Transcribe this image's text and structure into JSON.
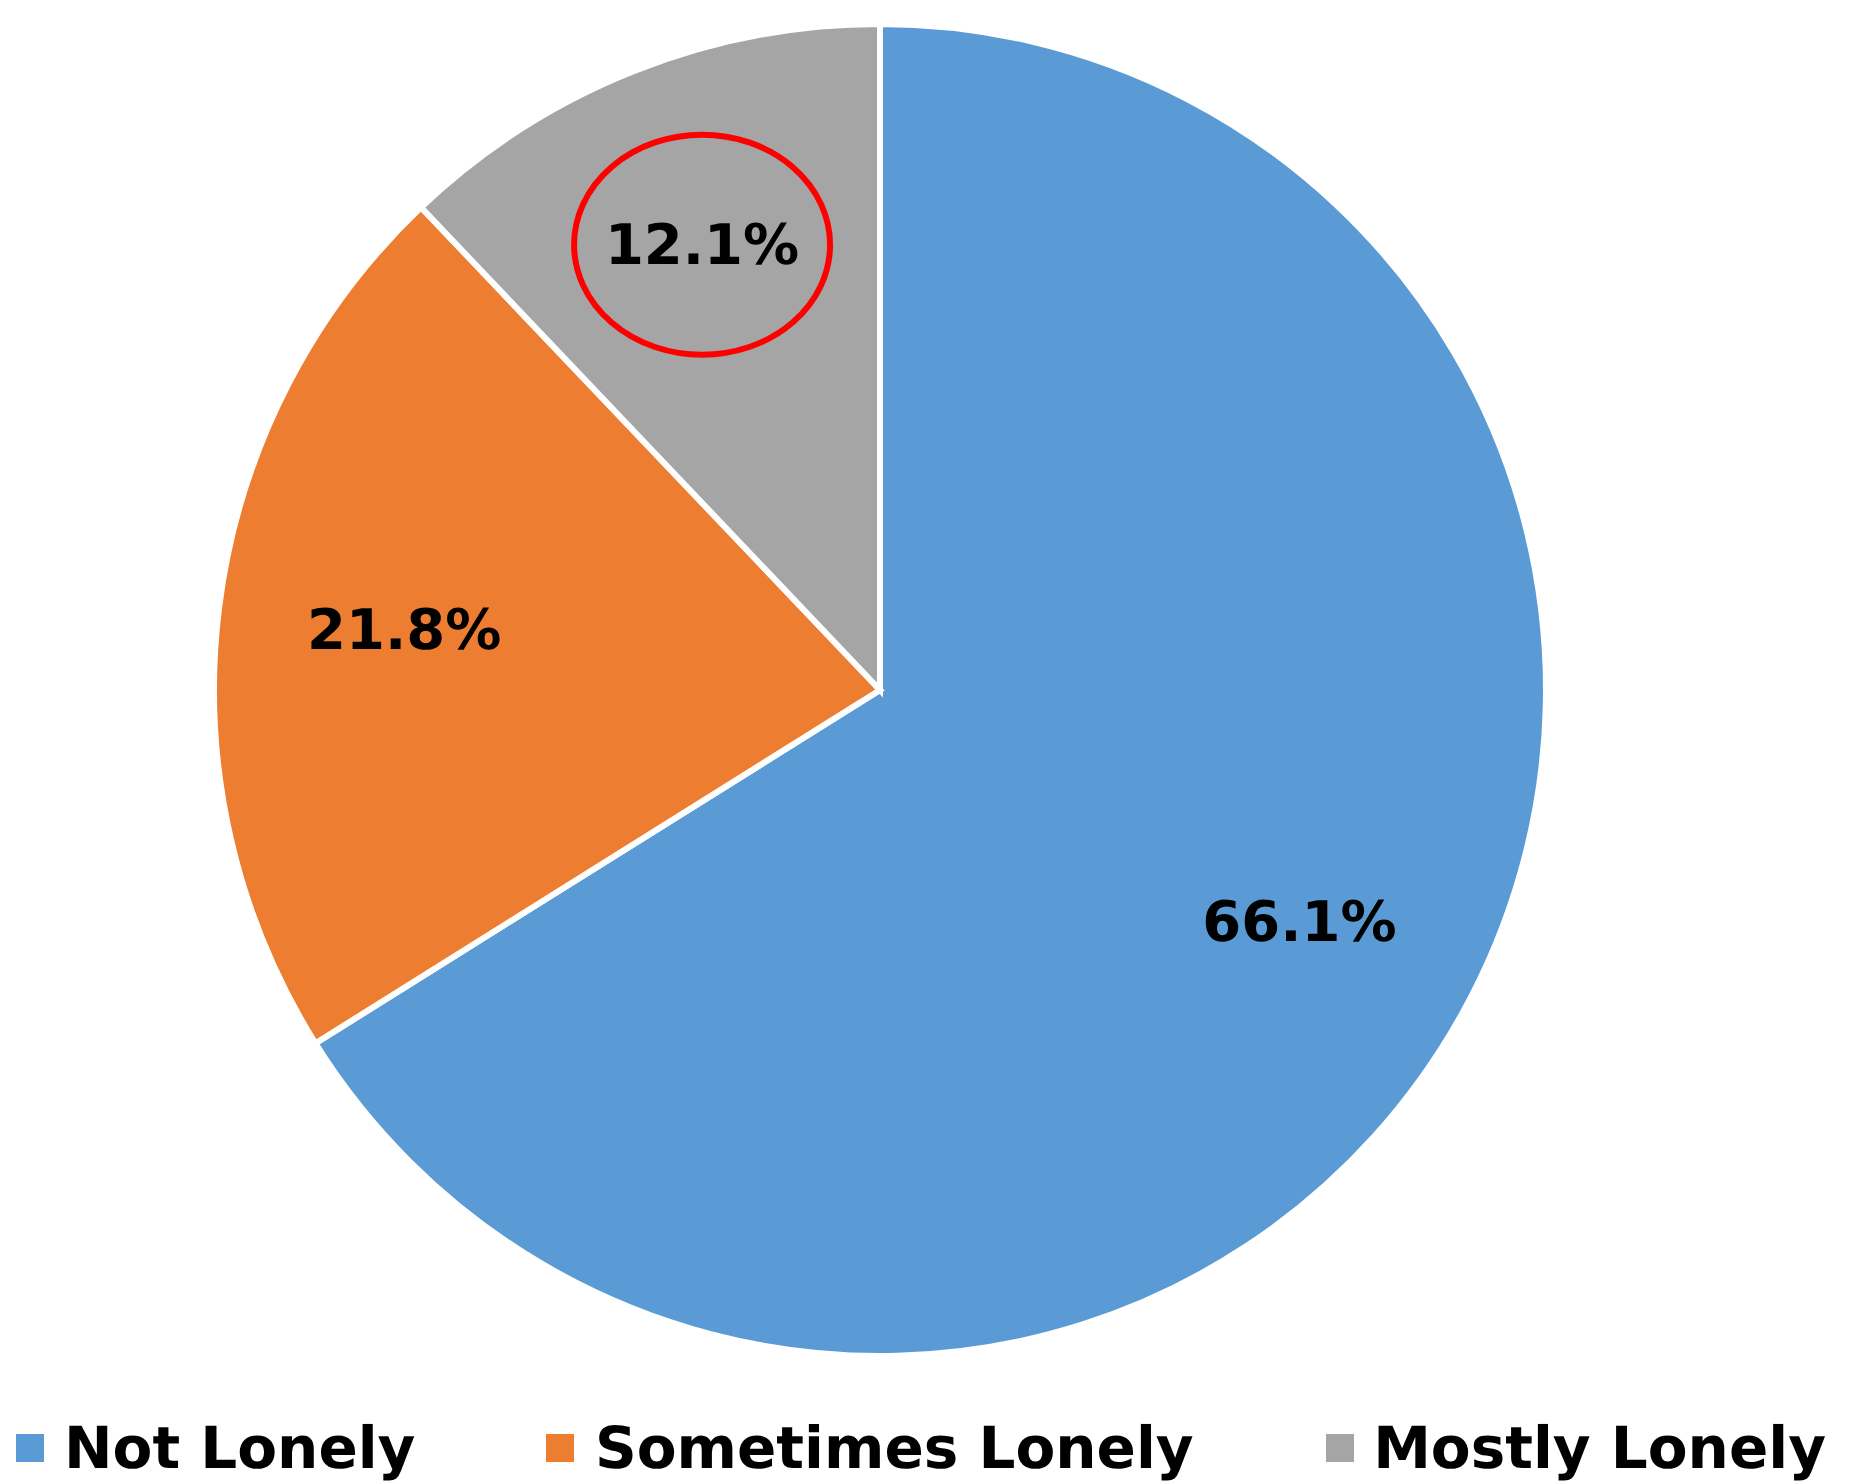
{
  "chart_data": {
    "type": "pie",
    "categories": [
      "Not Lonely",
      "Sometimes Lonely",
      "Mostly Lonely"
    ],
    "values": [
      66.1,
      21.8,
      12.1
    ],
    "colors": [
      "#5b9bd5",
      "#ed7d31",
      "#a5a5a5"
    ],
    "value_labels": [
      "66.1%",
      "21.8%",
      "12.1%"
    ],
    "legend": "bottom"
  }
}
